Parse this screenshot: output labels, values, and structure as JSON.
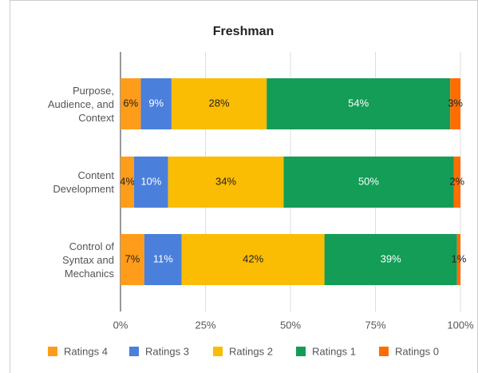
{
  "chart_data": {
    "type": "stacked_bar_horizontal",
    "title": "Freshman",
    "categories": [
      "Purpose, Audience, and Context",
      "Content Development",
      "Control of Syntax and Mechanics"
    ],
    "series": [
      {
        "name": "Ratings 4",
        "color": "#ff9c1a",
        "values": [
          6,
          4,
          7
        ],
        "value_labels": [
          "6%",
          "4%",
          "7%"
        ]
      },
      {
        "name": "Ratings 3",
        "color": "#4a7fdc",
        "values": [
          9,
          10,
          11
        ],
        "value_labels": [
          "9%",
          "10%",
          "11%"
        ]
      },
      {
        "name": "Ratings 2",
        "color": "#fbbc04",
        "values": [
          28,
          34,
          42
        ],
        "value_labels": [
          "28%",
          "34%",
          "42%"
        ]
      },
      {
        "name": "Ratings 1",
        "color": "#139d57",
        "values": [
          54,
          50,
          39
        ],
        "value_labels": [
          "54%",
          "50%",
          "39%"
        ]
      },
      {
        "name": "Ratings 0",
        "color": "#ff6d01",
        "values": [
          3,
          2,
          1
        ],
        "value_labels": [
          "3%",
          "2%",
          "1%"
        ]
      }
    ],
    "xlim": [
      0,
      100
    ],
    "xticks": [
      {
        "value": 0,
        "label": "0%"
      },
      {
        "value": 25,
        "label": "25%"
      },
      {
        "value": 50,
        "label": "50%"
      },
      {
        "value": 75,
        "label": "75%"
      },
      {
        "value": 100,
        "label": "100%"
      }
    ],
    "grid": true,
    "legend": "bottom"
  }
}
